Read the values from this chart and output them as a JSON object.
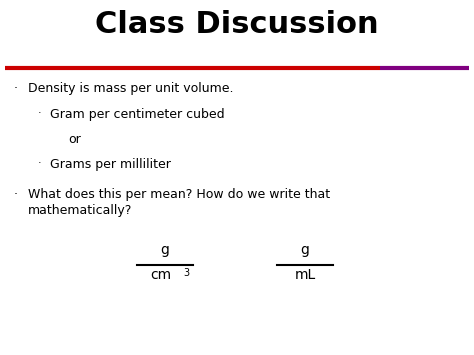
{
  "title": "Class Discussion",
  "title_fontsize": 22,
  "title_color": "#000000",
  "background_color": "#ffffff",
  "bullet1": "Density is mass per unit volume.",
  "bullet2": "Gram per centimeter cubed",
  "bullet2b": "or",
  "bullet3": "Grams per milliliter",
  "bullet4a": "What does this per mean? How do we write that",
  "bullet4b": "mathematically?",
  "frac1_num": "g",
  "frac1_den": "cm",
  "frac1_den_super": "3",
  "frac2_num": "g",
  "frac2_den": "mL",
  "text_color": "#000000",
  "body_fontsize": 9,
  "font_family": "DejaVu Sans",
  "line_red": "#cc0000",
  "line_purple": "#800080",
  "bullet_small": "·"
}
